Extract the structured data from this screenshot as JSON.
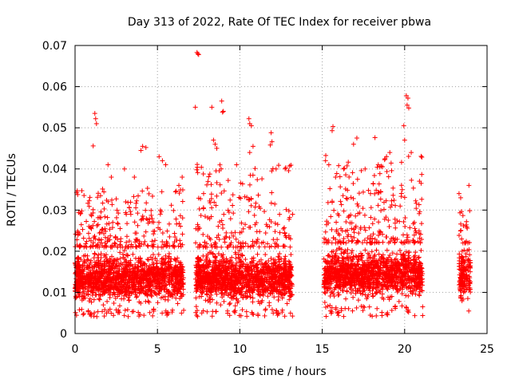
{
  "chart_data": {
    "type": "scatter",
    "title": "Day 313 of 2022, Rate Of TEC Index for receiver pbwa",
    "xlabel": "GPS time / hours",
    "ylabel": "ROTI / TECUs",
    "xlim": [
      0,
      25
    ],
    "ylim": [
      0,
      0.07
    ],
    "x_ticks": [
      "0",
      "5",
      "10",
      "15",
      "20",
      "25"
    ],
    "y_ticks": [
      "0",
      "0.01",
      "0.02",
      "0.03",
      "0.04",
      "0.05",
      "0.06",
      "0.07"
    ],
    "grid": true,
    "marker": "+",
    "color": "#ff0000",
    "series": [
      {
        "segments": [
          {
            "x_range": [
              0.0,
              6.6
            ],
            "typical": [
              0.006,
              0.021
            ],
            "envelope": [
              0.004,
              0.045
            ]
          },
          {
            "x_range": [
              7.3,
              13.2
            ],
            "typical": [
              0.006,
              0.021
            ],
            "envelope": [
              0.004,
              0.055
            ]
          },
          {
            "x_range": [
              15.1,
              21.1
            ],
            "typical": [
              0.007,
              0.022
            ],
            "envelope": [
              0.004,
              0.058
            ]
          },
          {
            "x_range": [
              23.3,
              24.0
            ],
            "typical": [
              0.007,
              0.022
            ],
            "envelope": [
              0.005,
              0.036
            ]
          }
        ],
        "points": [
          [
            7.4,
            0.0683
          ],
          [
            7.45,
            0.068
          ],
          [
            7.5,
            0.0678
          ],
          [
            20.1,
            0.0578
          ],
          [
            20.2,
            0.0572
          ],
          [
            20.15,
            0.0555
          ],
          [
            20.25,
            0.0548
          ],
          [
            8.9,
            0.0565
          ],
          [
            8.95,
            0.0538
          ],
          [
            9.0,
            0.054
          ],
          [
            7.3,
            0.055
          ],
          [
            8.3,
            0.055
          ],
          [
            1.2,
            0.0535
          ],
          [
            1.25,
            0.0522
          ],
          [
            1.3,
            0.051
          ],
          [
            15.65,
            0.0503
          ],
          [
            15.6,
            0.0493
          ],
          [
            10.55,
            0.0522
          ],
          [
            10.6,
            0.051
          ],
          [
            10.7,
            0.0505
          ],
          [
            11.9,
            0.0488
          ],
          [
            11.95,
            0.0466
          ],
          [
            11.85,
            0.0458
          ],
          [
            19.95,
            0.0505
          ],
          [
            20.0,
            0.047
          ],
          [
            18.2,
            0.0476
          ],
          [
            17.1,
            0.0475
          ],
          [
            16.9,
            0.046
          ],
          [
            1.1,
            0.0456
          ],
          [
            4.1,
            0.0455
          ],
          [
            4.3,
            0.0452
          ],
          [
            4.0,
            0.0445
          ],
          [
            5.1,
            0.043
          ],
          [
            5.3,
            0.042
          ],
          [
            5.5,
            0.041
          ],
          [
            8.4,
            0.047
          ],
          [
            8.5,
            0.046
          ],
          [
            8.6,
            0.045
          ],
          [
            10.8,
            0.0455
          ],
          [
            10.6,
            0.044
          ],
          [
            15.2,
            0.042
          ],
          [
            15.4,
            0.041
          ],
          [
            16.3,
            0.04
          ],
          [
            19.1,
            0.044
          ],
          [
            18.9,
            0.043
          ],
          [
            20.4,
            0.044
          ],
          [
            20.9,
            0.037
          ],
          [
            21.0,
            0.0365
          ],
          [
            23.3,
            0.034
          ],
          [
            23.4,
            0.033
          ],
          [
            23.9,
            0.036
          ],
          [
            2.0,
            0.041
          ],
          [
            2.2,
            0.038
          ],
          [
            3.0,
            0.04
          ],
          [
            3.6,
            0.038
          ],
          [
            6.5,
            0.038
          ],
          [
            6.3,
            0.036
          ],
          [
            7.8,
            0.034
          ],
          [
            9.8,
            0.041
          ],
          [
            12.2,
            0.04
          ],
          [
            13.2,
            0.029
          ],
          [
            17.6,
            0.04
          ],
          [
            18.4,
            0.041
          ]
        ]
      }
    ]
  }
}
